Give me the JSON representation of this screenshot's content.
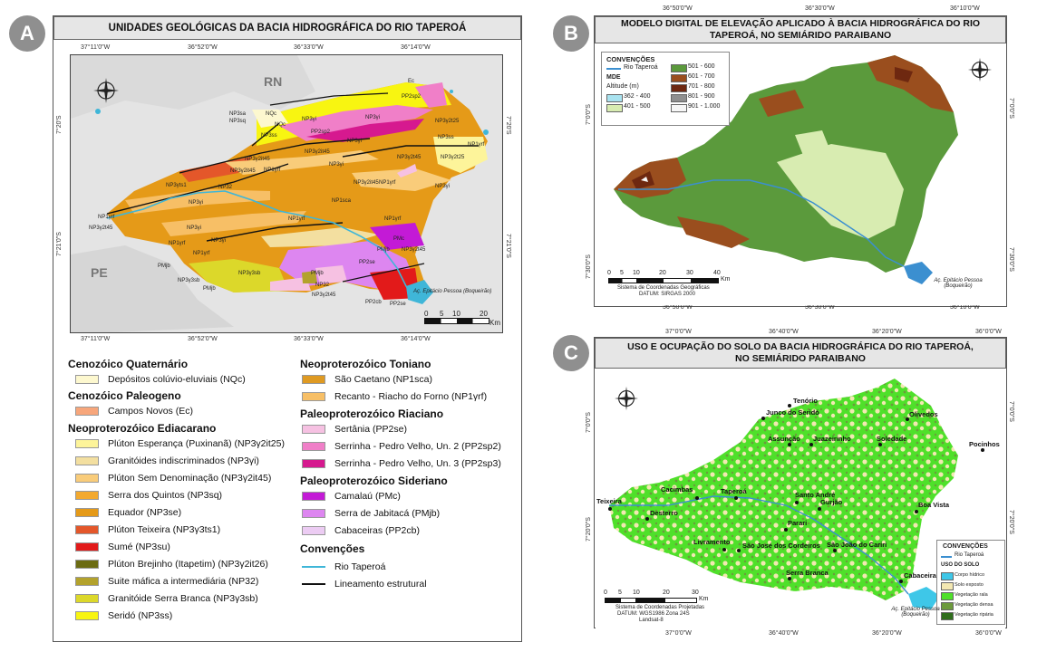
{
  "badges": {
    "a": "A",
    "b": "B",
    "c": "C"
  },
  "panelA": {
    "title": "UNIDADES GEOLÓGICAS DA BACIA HIDROGRÁFICA DO RIO TAPEROÁ",
    "coords_top": [
      "37°11'0\"W",
      "36°52'0\"W",
      "36°33'0\"W",
      "36°14'0\"W"
    ],
    "coords_bottom": [
      "37°11'0\"W",
      "36°52'0\"W",
      "36°33'0\"W",
      "36°14'0\"W"
    ],
    "coords_left": [
      "7°20'S",
      "7°21'0\"S"
    ],
    "coords_right": [
      "7°20'S",
      "7°21'0\"S"
    ],
    "states": {
      "rn": "RN",
      "pe": "PE"
    },
    "reservoir": "Aç. Epitácio Pessoa (Boqueirão)",
    "scale_ticks": [
      "0",
      "5",
      "10",
      "20"
    ],
    "scale_unit": "Km",
    "map_labels": [
      "NP3sa",
      "NP3sq",
      "NQc",
      "NP3γi",
      "NQc",
      "NP3ss",
      "NP3γi",
      "PP2sp2",
      "Ec",
      "NP3γ2t25",
      "NP3ss",
      "NP1γrf",
      "PP2sp2",
      "NP3γ2it45",
      "NP3γi",
      "NP3γ2t45",
      "NP3γ2t25",
      "NP3γ2it45",
      "NP1γrf",
      "NP3γi",
      "NP3γts1",
      "NP32",
      "NP3γ2it45",
      "NP1γrf",
      "NP3γi",
      "NP1sca",
      "NP3γi",
      "NP1γrf",
      "NP1γrf",
      "NP1γrf",
      "NP3γ2t45",
      "NP3γi",
      "NP1γrf",
      "NP3γi",
      "NP1γrf",
      "PMc",
      "PMjb",
      "NP3γ2t45",
      "PMjb",
      "NP3γ3sb",
      "PMjb",
      "NP3γ3sb",
      "PP2se",
      "PMjb",
      "NP32",
      "NP3γ2t45",
      "PP2cb",
      "NP3γ2it45",
      "PP2se"
    ],
    "legend": {
      "groups": [
        {
          "title": "Cenozóico Quaternário",
          "items": [
            {
              "label": "Depósitos colúvio-eluviais (NQc)",
              "color": "#fdf8cf"
            }
          ]
        },
        {
          "title": "Cenozóico Paleogeno",
          "items": [
            {
              "label": "Campos Novos (Ec)",
              "color": "#f7a67b"
            }
          ]
        },
        {
          "title": "Neoproterozóico Ediacarano",
          "items": [
            {
              "label": "Plúton Esperança (Puxinanã) (NP3γ2it25)",
              "color": "#fdf49a"
            },
            {
              "label": "Granitóides indiscriminados (NP3γi)",
              "color": "#f3dfa0"
            },
            {
              "label": "Plúton Sem Denominação (NP3γ2it45)",
              "color": "#f9cc7a"
            },
            {
              "label": "Serra dos Quintos (NP3sq)",
              "color": "#f3a92e"
            },
            {
              "label": "Equador (NP3se)",
              "color": "#e59a18"
            },
            {
              "label": "Plúton Teixeira (NP3γ3ts1)",
              "color": "#e4572a"
            },
            {
              "label": "Sumé (NP3su)",
              "color": "#e21a1a"
            },
            {
              "label": "Plúton Brejinho (Itapetim) (NP3γ2it26)",
              "color": "#6b6b12"
            },
            {
              "label": "Suite máfica a intermediária (NP32)",
              "color": "#b3a22c"
            },
            {
              "label": "Granitóide Serra Branca (NP3γ3sb)",
              "color": "#dcd82a"
            },
            {
              "label": "Seridó (NP3ss)",
              "color": "#f8f511"
            }
          ]
        },
        {
          "title": "Neoproterozóico Toniano",
          "items": [
            {
              "label": "São Caetano (NP1sca)",
              "color": "#df9a22"
            },
            {
              "label": "Recanto - Riacho do Forno (NP1γrf)",
              "color": "#f7bf66"
            }
          ]
        },
        {
          "title": "Paleoproterozóico Riaciano",
          "items": [
            {
              "label": "Sertânia (PP2se)",
              "color": "#f6c1e2"
            },
            {
              "label": "Serrinha - Pedro Velho, Un. 2 (PP2sp2)",
              "color": "#f07fc8"
            },
            {
              "label": "Serrinha - Pedro Velho, Un. 3 (PP2sp3)",
              "color": "#d6198f"
            }
          ]
        },
        {
          "title": "Paleoproterozóico Sideriano",
          "items": [
            {
              "label": "Camalaú (PMc)",
              "color": "#c31ad6"
            },
            {
              "label": "Serra de Jabitacá (PMjb)",
              "color": "#dd86f0"
            },
            {
              "label": "Cabaceiras (PP2cb)",
              "color": "#ecccf3"
            }
          ]
        }
      ],
      "conventions_title": "Convenções",
      "conventions": [
        {
          "label": "Rio Taperoá",
          "color": "#3fb6d8"
        },
        {
          "label": "Lineamento estrutural",
          "color": "#111111"
        }
      ]
    }
  },
  "panelB": {
    "title": "MODELO DIGITAL DE ELEVAÇÃO APLICADO À BACIA HIDROGRÁFICA DO RIO TAPEROÁ, NO SEMIÁRIDO PARAIBANO",
    "coords_top": [
      "36°50'0\"W",
      "36°30'0\"W",
      "36°10'0\"W"
    ],
    "coords_bottom": [
      "36°50'0\"W",
      "36°30'0\"W",
      "36°10'0\"W"
    ],
    "coords_left": [
      "7°0'0\"S",
      "7°30'0\"S"
    ],
    "coords_right": [
      "7°0'0\"S",
      "7°30'0\"S"
    ],
    "legend_title": "CONVENÇÕES",
    "river": "Rio Taperoá",
    "mde": "MDE",
    "altitude": "Altitude (m)",
    "classes": [
      {
        "label": "362 - 400",
        "color": "#a9e3f0"
      },
      {
        "label": "401 - 500",
        "color": "#d8ecb1"
      },
      {
        "label": "501 - 600",
        "color": "#5b9a3c"
      },
      {
        "label": "601 - 700",
        "color": "#9a4e1e"
      },
      {
        "label": "701 - 800",
        "color": "#6e2810"
      },
      {
        "label": "801 - 900",
        "color": "#8f8f8f"
      },
      {
        "label": "901 - 1.000",
        "color": "#f7f7f7"
      }
    ],
    "scale_ticks": [
      "0",
      "5",
      "10",
      "20",
      "30",
      "40"
    ],
    "scale_unit": "Km",
    "crs": [
      "Sistema de Coordenadas Geográficas",
      "DATUM: SIRGAS 2000"
    ],
    "reservoir": "Aç. Epitácio Pessoa (Boqueirão)"
  },
  "panelC": {
    "title": "USO E OCUPAÇÃO DO SOLO DA BACIA HIDROGRÁFICA DO RIO TAPEROÁ, NO SEMIÁRIDO PARAIBANO",
    "coords_top": [
      "37°0'0\"W",
      "36°40'0\"W",
      "36°20'0\"W",
      "36°0'0\"W"
    ],
    "coords_bottom": [
      "37°0'0\"W",
      "36°40'0\"W",
      "36°20'0\"W",
      "36°0'0\"W"
    ],
    "coords_left": [
      "7°0'0\"S",
      "7°20'0\"S"
    ],
    "coords_right": [
      "7°0'0\"S",
      "7°20'0\"S"
    ],
    "towns": [
      "Tenório",
      "Junco do Seridó",
      "Olivedos",
      "Assunção",
      "Juazeirinho",
      "Soledade",
      "Pocinhos",
      "Cacimbas",
      "Taperoá",
      "Santo André",
      "Gurjão",
      "Boa Vista",
      "Teixeira",
      "Desterro",
      "Parari",
      "Livramento",
      "São José dos Cordeiros",
      "São João do Cariri",
      "Serra Branca",
      "Cabaceiras"
    ],
    "legend_title": "CONVENÇÕES",
    "river": "Rio Taperoá",
    "soil_title": "USO DO SOLO",
    "classes": [
      {
        "label": "Corpo hídrico",
        "color": "#3ec7e8"
      },
      {
        "label": "Solo exposto",
        "color": "#f3e8b2"
      },
      {
        "label": "Vegetação rala",
        "color": "#4fe02a"
      },
      {
        "label": "Vegetação densa",
        "color": "#6c9a3c"
      },
      {
        "label": "Vegetação ripária",
        "color": "#2f6e1c"
      }
    ],
    "scale_ticks": [
      "0",
      "5",
      "10",
      "20",
      "30"
    ],
    "scale_unit": "Km",
    "crs": [
      "Sistema de Coordenadas Projetadas",
      "DATUM: WGS1986 Zona 24S",
      "Landsat-8"
    ],
    "reservoir": "Aç. Epitácio Pessoa (Boqueirão)"
  }
}
